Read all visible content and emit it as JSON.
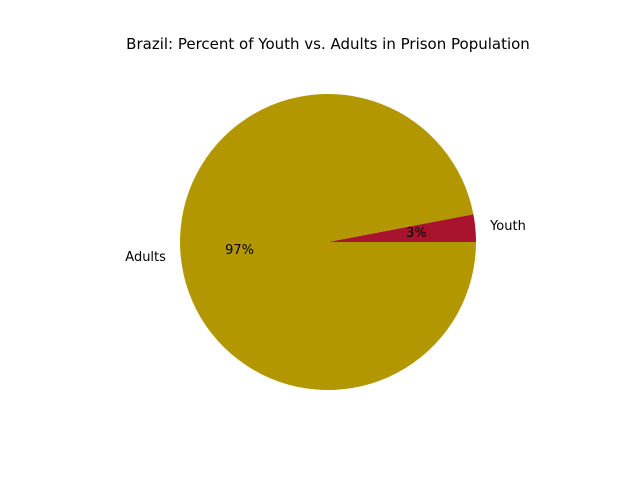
{
  "chart_data": {
    "type": "pie",
    "title": "Brazil: Percent of Youth vs. Adults in Prison Population",
    "slices": [
      {
        "label": "Youth",
        "value": 3,
        "pct_label": "3%",
        "color": "#a8132e"
      },
      {
        "label": "Adults",
        "value": 97,
        "pct_label": "97%",
        "color": "#b39700"
      }
    ],
    "start_angle_deg": 0,
    "direction": "counterclockwise",
    "legend": "none"
  }
}
